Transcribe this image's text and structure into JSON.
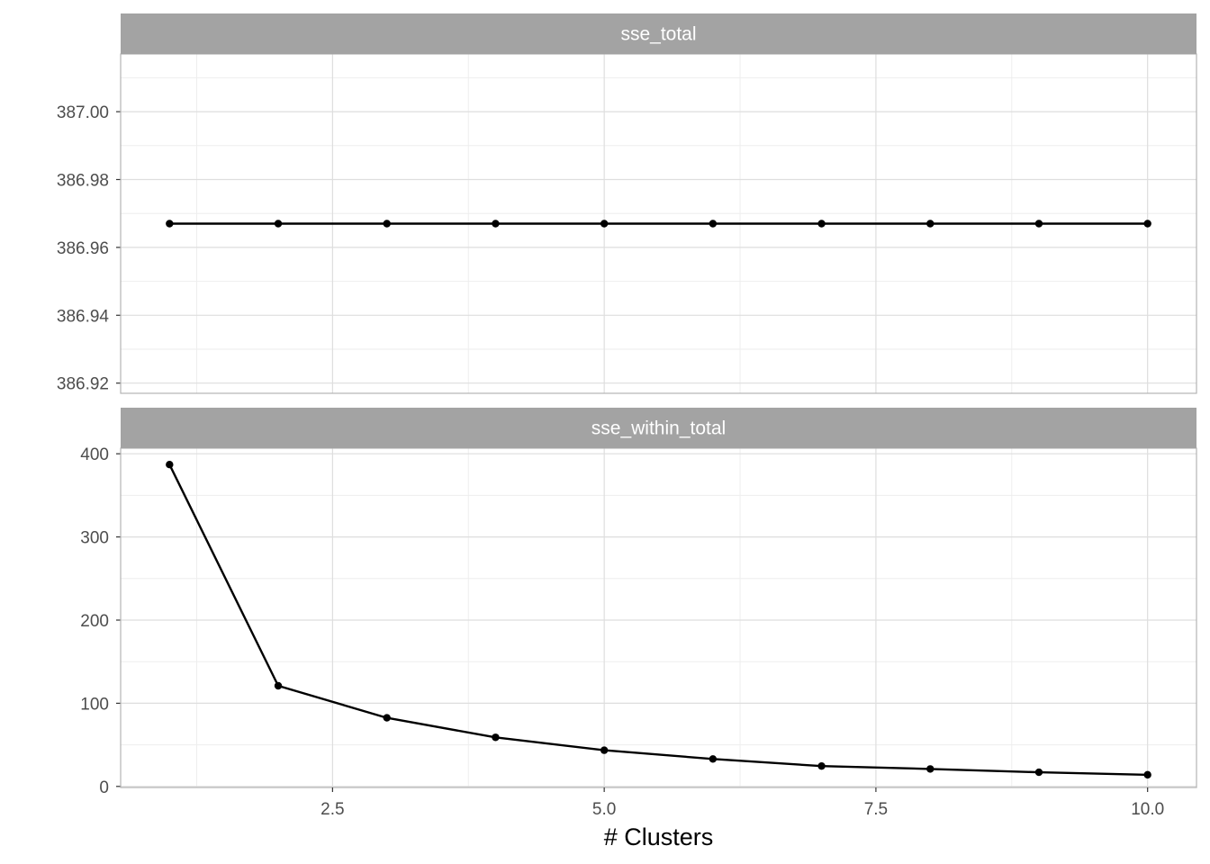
{
  "chart_data": [
    {
      "type": "line",
      "panel": "sse_total",
      "x": [
        1,
        2,
        3,
        4,
        5,
        6,
        7,
        8,
        9,
        10
      ],
      "values": [
        386.967,
        386.967,
        386.967,
        386.967,
        386.967,
        386.967,
        386.967,
        386.967,
        386.967,
        386.967
      ],
      "ylim": [
        386.917,
        387.017
      ],
      "yticks": [
        386.92,
        386.94,
        386.96,
        386.98,
        387.0
      ],
      "ytick_labels": [
        "386.92",
        "386.94",
        "386.96",
        "386.98",
        "387.00"
      ],
      "xlim": [
        0.55,
        10.45
      ],
      "grid": true
    },
    {
      "type": "line",
      "panel": "sse_within_total",
      "x": [
        1,
        2,
        3,
        4,
        5,
        6,
        7,
        8,
        9,
        10
      ],
      "values": [
        387,
        121,
        82.5,
        59,
        43.5,
        33,
        24.5,
        21,
        17,
        14
      ],
      "ylim": [
        -1.3,
        406.7
      ],
      "yticks": [
        0,
        100,
        200,
        300,
        400
      ],
      "ytick_labels": [
        "0",
        "100",
        "200",
        "300",
        "400"
      ],
      "xlim": [
        0.55,
        10.45
      ],
      "grid": true
    }
  ],
  "x_axis": {
    "title": "# Clusters",
    "ticks": [
      2.5,
      5.0,
      7.5,
      10.0
    ],
    "tick_labels": [
      "2.5",
      "5.0",
      "7.5",
      "10.0"
    ]
  },
  "colors": {
    "line": "#000000",
    "point": "#000000",
    "strip_bg": "#a3a3a3",
    "strip_text": "#ffffff",
    "grid_major": "#dedede",
    "grid_minor": "#eeeeee",
    "panel_border": "#b3b3b3"
  }
}
